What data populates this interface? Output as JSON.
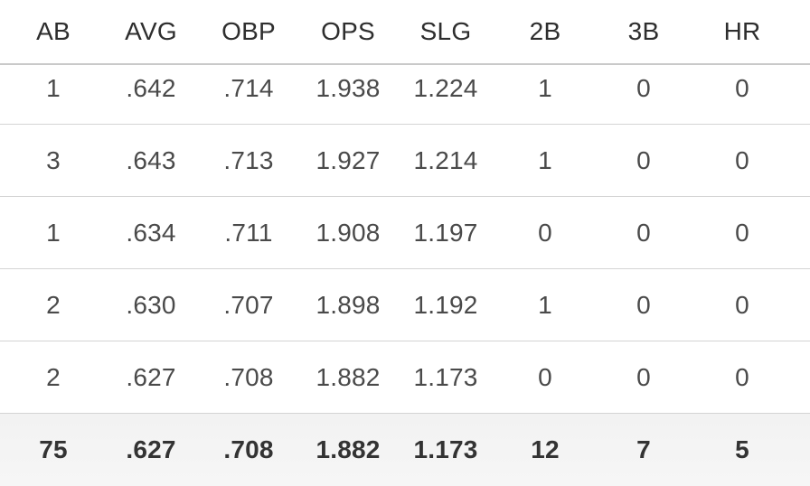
{
  "table": {
    "headers": [
      "AB",
      "AVG",
      "OBP",
      "OPS",
      "SLG",
      "2B",
      "3B",
      "HR"
    ],
    "rows": [
      [
        "1",
        ".642",
        ".714",
        "1.938",
        "1.224",
        "1",
        "0",
        "0"
      ],
      [
        "3",
        ".643",
        ".713",
        "1.927",
        "1.214",
        "1",
        "0",
        "0"
      ],
      [
        "1",
        ".634",
        ".711",
        "1.908",
        "1.197",
        "0",
        "0",
        "0"
      ],
      [
        "2",
        ".630",
        ".707",
        "1.898",
        "1.192",
        "1",
        "0",
        "0"
      ],
      [
        "2",
        ".627",
        ".708",
        "1.882",
        "1.173",
        "0",
        "0",
        "0"
      ]
    ],
    "totals": [
      "75",
      ".627",
      ".708",
      "1.882",
      "1.173",
      "12",
      "7",
      "5"
    ]
  }
}
